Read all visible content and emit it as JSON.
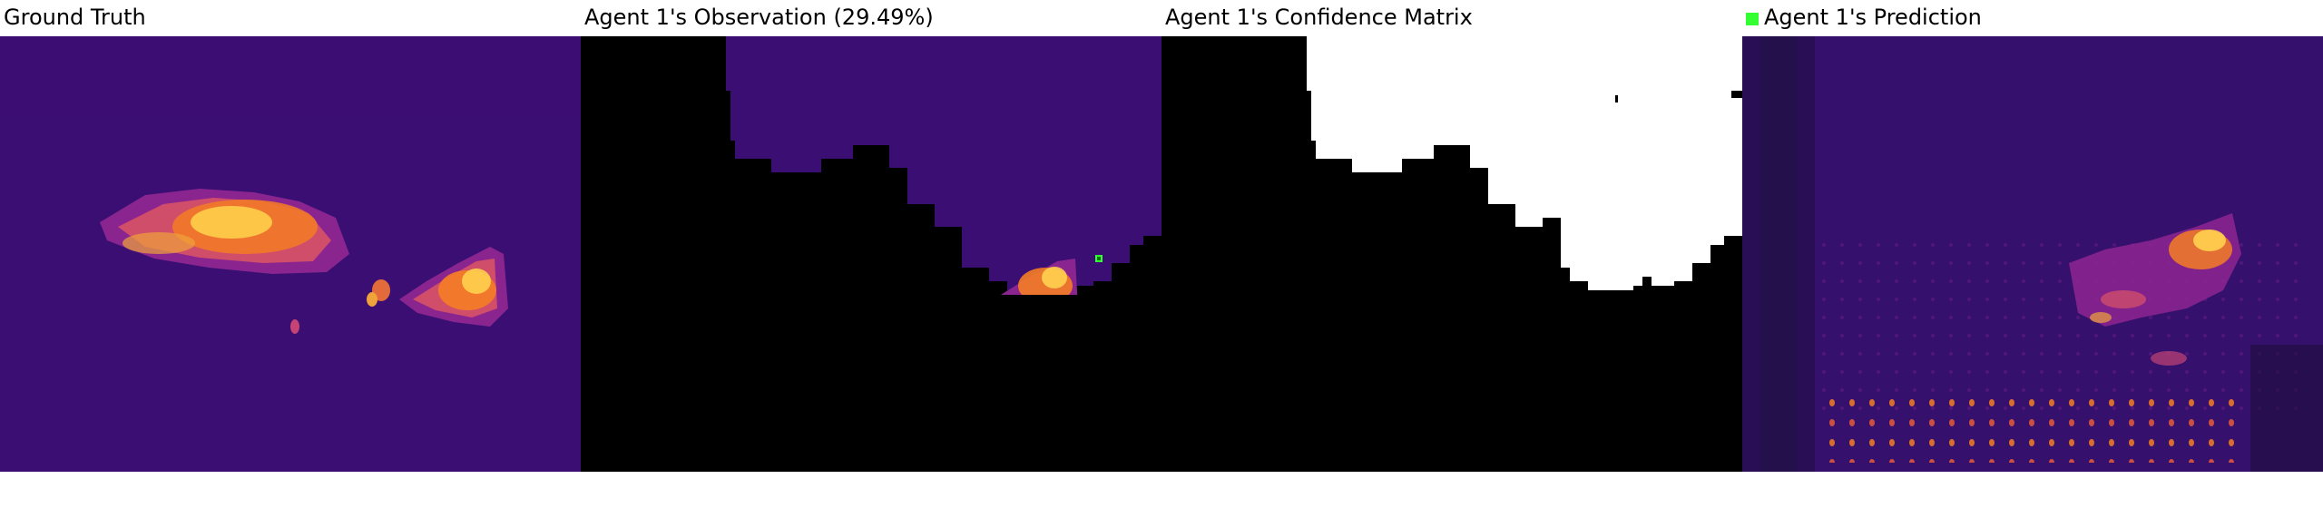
{
  "panels": [
    {
      "title": "Ground Truth"
    },
    {
      "title": "Agent 1's Observation (29.49%)"
    },
    {
      "title": "Agent 1's Confidence Matrix"
    },
    {
      "title": "Agent 1's Prediction"
    }
  ],
  "colors": {
    "background": "#3a0e72",
    "hot_low": "#b8338c",
    "hot_mid": "#f57d25",
    "hot_high": "#ffe36a",
    "masked": "#000000",
    "confident": "#ffffff",
    "agent_marker": "#33ff33"
  }
}
